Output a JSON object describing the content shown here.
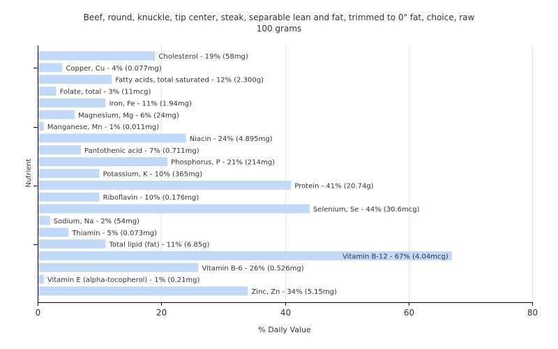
{
  "chart_data": {
    "type": "bar",
    "orientation": "horizontal",
    "title": "Beef, round, knuckle, tip center, steak, separable lean and fat, trimmed to 0\" fat, choice, raw",
    "subtitle": "100 grams",
    "xlabel": "% Daily Value",
    "ylabel": "Nutrient",
    "xlim": [
      0,
      80
    ],
    "xticks": [
      0,
      20,
      40,
      60,
      80
    ],
    "grid": true,
    "bar_color": "#c2d9f7",
    "grid_color": "#e6e6e6",
    "axis_color": "#000000",
    "categories": [
      "Cholesterol",
      "Copper, Cu",
      "Fatty acids, total saturated",
      "Folate, total",
      "Iron, Fe",
      "Magnesium, Mg",
      "Manganese, Mn",
      "Niacin",
      "Pantothenic acid",
      "Phosphorus, P",
      "Potassium, K",
      "Protein",
      "Riboflavin",
      "Selenium, Se",
      "Sodium, Na",
      "Thiamin",
      "Total lipid (fat)",
      "Vitamin B-12",
      "Vitamin B-6",
      "Vitamin E (alpha-tocopherol)",
      "Zinc, Zn"
    ],
    "values": [
      19,
      4,
      12,
      3,
      11,
      6,
      1,
      24,
      7,
      21,
      10,
      41,
      10,
      44,
      2,
      5,
      11,
      67,
      26,
      1,
      34
    ],
    "labels": [
      "Cholesterol - 19% (58mg)",
      "Copper, Cu - 4% (0.077mg)",
      "Fatty acids, total saturated - 12% (2.300g)",
      "Folate, total - 3% (11mcg)",
      "Iron, Fe - 11% (1.94mg)",
      "Magnesium, Mg - 6% (24mg)",
      "Manganese, Mn - 1% (0.011mg)",
      "Niacin - 24% (4.895mg)",
      "Pantothenic acid - 7% (0.711mg)",
      "Phosphorus, P - 21% (214mg)",
      "Potassium, K - 10% (365mg)",
      "Protein - 41% (20.74g)",
      "Riboflavin - 10% (0.176mg)",
      "Selenium, Se - 44% (30.6mcg)",
      "Sodium, Na - 2% (54mg)",
      "Thiamin - 5% (0.073mg)",
      "Total lipid (fat) - 11% (6.85g)",
      "Vitamin B-12 - 67% (4.04mcg)",
      "Vitamin B-6 - 26% (0.526mg)",
      "Vitamin E (alpha-tocopherol) - 1% (0.21mg)",
      "Zinc, Zn - 34% (5.15mg)"
    ]
  }
}
